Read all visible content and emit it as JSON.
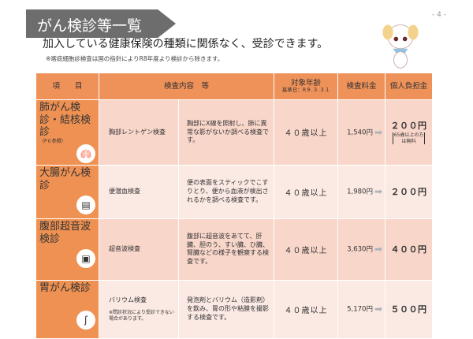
{
  "title": "がん検診等一覧",
  "page_number": "- 4 -",
  "subtitle": "加入している健康保険の種類に関係なく、受診できます。",
  "note": "※喀痰細胞診検査は国の指針によりR8年度より検診から除きます。",
  "header": {
    "item": "項　　目",
    "content": "検査内容　等",
    "age": "対象年齢",
    "age_sub": "基準日：R９.３.３１",
    "fee": "検査料金",
    "charge": "個人負担金"
  },
  "rows": [
    {
      "item": "肺がん検診・結核検診",
      "ref": "（P６参照）",
      "icon": "lungs-icon",
      "test": "胸部レントゲン検査",
      "desc": "胸部にX線を照射し、肺に異常な影がないか調べる検査です。",
      "age": "４０歳以上",
      "fee": "1,540円",
      "charge": "２００円",
      "charge_note": "65歳以上の方は無料"
    },
    {
      "item": "大腸がん検診",
      "icon": "intestine-icon",
      "test": "便潜血検査",
      "desc": "便の表面をスティックでこすりとり、便から血液が検出されるかを調べる検査です。",
      "age": "４０歳以上",
      "fee": "1,980円",
      "charge": "２００円"
    },
    {
      "item": "腹部超音波検診",
      "icon": "ultrasound-icon",
      "test": "超音波検査",
      "desc": "腹部に超音波をあてて、肝臓、胆のう、すい臓、ひ臓、腎臓などの様子を観察する検査です。",
      "age": "４０歳以上",
      "fee": "3,630円",
      "charge": "４００円"
    },
    {
      "item": "胃がん検診",
      "icon": "stomach-icon",
      "test": "バリウム検査",
      "test_note": "※問診状況により受診できない場合があります。",
      "desc": "発泡剤とバリウム（造影剤）を飲み、胃の形や粘膜を撮影する検査です。",
      "age": "４０歳以上",
      "fee": "5,170円",
      "charge": "５００円"
    }
  ]
}
